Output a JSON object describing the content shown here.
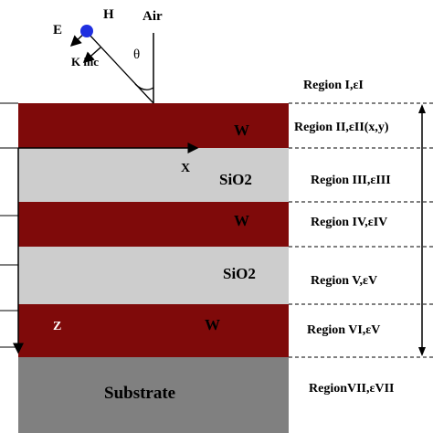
{
  "source": {
    "field_e": "E",
    "field_h": "H",
    "wave_vector": "K inc",
    "medium": "Air",
    "angle": "θ"
  },
  "axes": {
    "x": "X",
    "z": "Z"
  },
  "layers": [
    {
      "material": "W",
      "region": "Region II,εII(x,y)"
    },
    {
      "material": "SiO2",
      "region": "Region III,εIII"
    },
    {
      "material": "W",
      "region": "Region IV,εIV"
    },
    {
      "material": "SiO2",
      "region": "Region V,εV"
    },
    {
      "material": "W",
      "region": "Region VI,εV"
    },
    {
      "material": "Substrate",
      "region": "RegionVII,εVII"
    }
  ],
  "top_region": "Region I,εI",
  "colors": {
    "tungsten": "#7f0a0a",
    "sio2": "#cdcdcd",
    "substrate": "#808080",
    "dot": "#1f2fe0"
  }
}
